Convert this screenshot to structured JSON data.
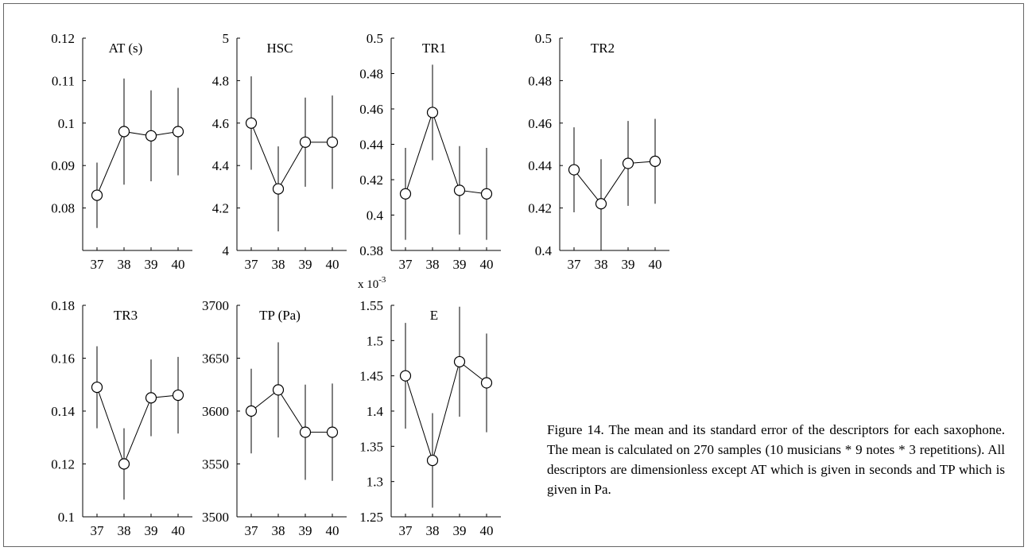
{
  "caption": "Figure 14. The mean and its standard error of the descriptors for each saxophone. The mean is calculated on 270 samples (10 musicians * 9 notes * 3 repetitions). All descriptors are dimensionless except AT which is given in seconds and TP which is given in Pa.",
  "chart_data": [
    {
      "type": "scatter",
      "title": "AT (s)",
      "x": [
        "37",
        "38",
        "39",
        "40"
      ],
      "y": [
        0.083,
        0.098,
        0.097,
        0.098
      ],
      "err": [
        0.0077,
        0.0125,
        0.0107,
        0.0103
      ],
      "ylim": [
        0.07,
        0.12
      ],
      "yticks": [
        "0.08",
        "0.09",
        "0.1",
        "0.11",
        "0.12"
      ],
      "ytick_values": [
        0.08,
        0.09,
        0.1,
        0.11,
        0.12
      ],
      "exponent_label": ""
    },
    {
      "type": "scatter",
      "title": "HSC",
      "x": [
        "37",
        "38",
        "39",
        "40"
      ],
      "y": [
        4.6,
        4.29,
        4.51,
        4.51
      ],
      "err": [
        0.22,
        0.2,
        0.21,
        0.22
      ],
      "ylim": [
        4.0,
        5.0
      ],
      "yticks": [
        "4",
        "4.2",
        "4.4",
        "4.6",
        "4.8",
        "5"
      ],
      "ytick_values": [
        4.0,
        4.2,
        4.4,
        4.6,
        4.8,
        5.0
      ],
      "exponent_label": ""
    },
    {
      "type": "scatter",
      "title": "TR1",
      "x": [
        "37",
        "38",
        "39",
        "40"
      ],
      "y": [
        0.412,
        0.458,
        0.414,
        0.412
      ],
      "err": [
        0.026,
        0.027,
        0.025,
        0.026
      ],
      "ylim": [
        0.38,
        0.5
      ],
      "yticks": [
        "0.38",
        "0.4",
        "0.42",
        "0.44",
        "0.46",
        "0.48",
        "0.5"
      ],
      "ytick_values": [
        0.38,
        0.4,
        0.42,
        0.44,
        0.46,
        0.48,
        0.5
      ],
      "exponent_label": ""
    },
    {
      "type": "scatter",
      "title": "TR2",
      "x": [
        "37",
        "38",
        "39",
        "40"
      ],
      "y": [
        0.438,
        0.422,
        0.441,
        0.442
      ],
      "err": [
        0.02,
        0.021,
        0.02,
        0.02
      ],
      "ylim": [
        0.4,
        0.5
      ],
      "yticks": [
        "0.4",
        "0.42",
        "0.44",
        "0.46",
        "0.48",
        "0.5"
      ],
      "ytick_values": [
        0.4,
        0.42,
        0.44,
        0.46,
        0.48,
        0.5
      ],
      "exponent_label": ""
    },
    {
      "type": "scatter",
      "title": "TR3",
      "x": [
        "37",
        "38",
        "39",
        "40"
      ],
      "y": [
        0.149,
        0.12,
        0.145,
        0.146
      ],
      "err": [
        0.0155,
        0.0135,
        0.0145,
        0.0145
      ],
      "ylim": [
        0.1,
        0.18
      ],
      "yticks": [
        "0.1",
        "0.12",
        "0.14",
        "0.16",
        "0.18"
      ],
      "ytick_values": [
        0.1,
        0.12,
        0.14,
        0.16,
        0.18
      ],
      "exponent_label": ""
    },
    {
      "type": "scatter",
      "title": "TP (Pa)",
      "x": [
        "37",
        "38",
        "39",
        "40"
      ],
      "y": [
        3600,
        3620,
        3580,
        3580
      ],
      "err": [
        40,
        45,
        45,
        46
      ],
      "ylim": [
        3500,
        3700
      ],
      "yticks": [
        "3500",
        "3550",
        "3600",
        "3650",
        "3700"
      ],
      "ytick_values": [
        3500,
        3550,
        3600,
        3650,
        3700
      ],
      "exponent_label": ""
    },
    {
      "type": "scatter",
      "title": "E",
      "x": [
        "37",
        "38",
        "39",
        "40"
      ],
      "y": [
        1.45,
        1.33,
        1.47,
        1.44
      ],
      "err": [
        0.075,
        0.067,
        0.078,
        0.07
      ],
      "ylim": [
        1.25,
        1.55
      ],
      "yticks": [
        "1.25",
        "1.3",
        "1.35",
        "1.4",
        "1.45",
        "1.5",
        "1.55"
      ],
      "ytick_values": [
        1.25,
        1.3,
        1.35,
        1.4,
        1.45,
        1.5,
        1.55
      ],
      "exponent_label": "x 10",
      "exponent_power": "-3"
    }
  ]
}
